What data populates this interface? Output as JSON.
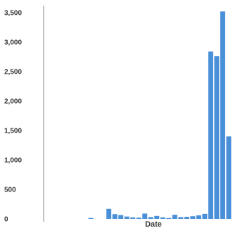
{
  "chart_data": {
    "type": "bar",
    "title": "",
    "xlabel": "Date",
    "ylabel": "",
    "ylim": [
      0,
      3500
    ],
    "yticks": [
      0,
      500,
      1000,
      1500,
      2000,
      2500,
      3000,
      3500
    ],
    "ytick_labels": [
      "0",
      "500",
      "1,000",
      "1,500",
      "2,000",
      "2,500",
      "3,000",
      "3,500"
    ],
    "grid": false,
    "bar_color": "#4a90d9",
    "values": [
      0,
      0,
      0,
      0,
      0,
      0,
      0,
      15,
      0,
      0,
      170,
      80,
      65,
      40,
      25,
      20,
      90,
      30,
      50,
      25,
      15,
      70,
      30,
      35,
      45,
      60,
      85,
      2840,
      2760,
      3520,
      1400
    ]
  }
}
